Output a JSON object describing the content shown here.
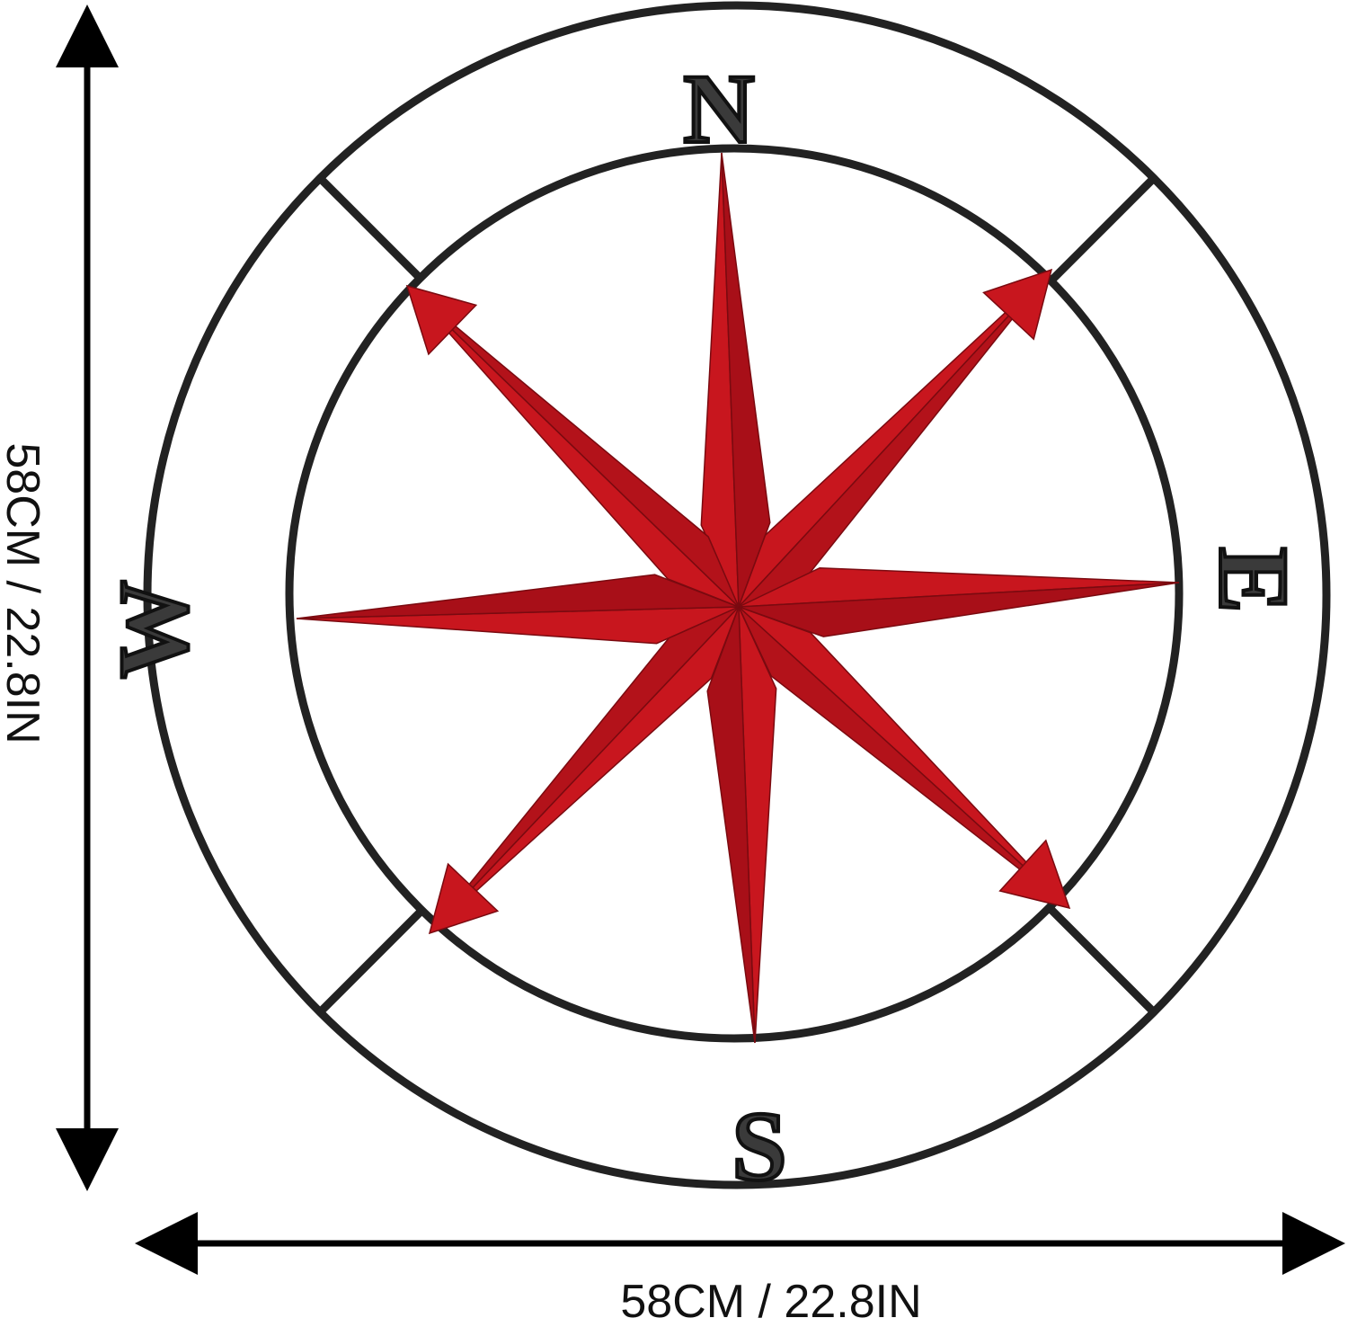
{
  "dimensions": {
    "height_label": "58CM / 22.8IN",
    "width_label": "58CM / 22.8IN"
  },
  "compass": {
    "north": "N",
    "east": "E",
    "south": "S",
    "west": "W"
  },
  "colors": {
    "star": "#c8161e",
    "star_shade": "#9e0e16",
    "frame": "#222222",
    "arrows": "#000000"
  }
}
